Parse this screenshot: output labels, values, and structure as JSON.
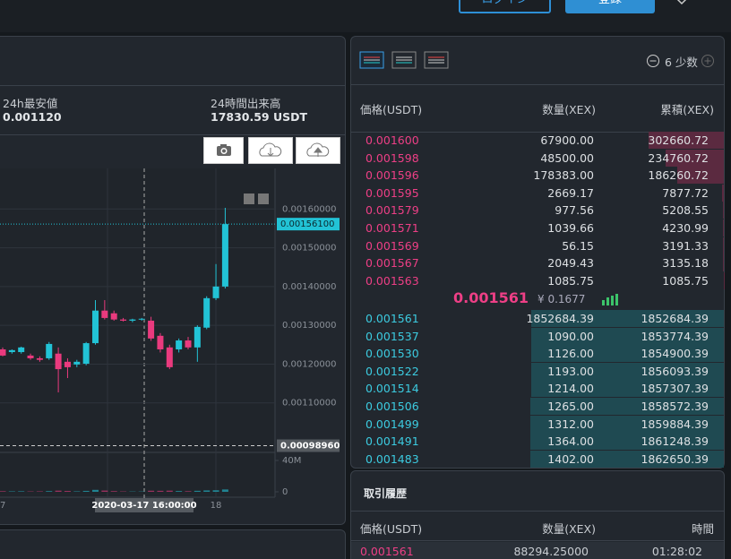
{
  "header": {
    "login": "ログイン",
    "register": "登録"
  },
  "stats": [
    {
      "label": "24h最安値",
      "value": "0.001120"
    },
    {
      "label": "24時間出来高",
      "value": "17830.59 USDT"
    }
  ],
  "chart": {
    "type": "candlestick",
    "up_color": "#22c3d6",
    "down_color": "#ea3a7e",
    "ylim": [
      0.00097,
      0.0017
    ],
    "yticks": [
      {
        "value": 0.0011,
        "label": "0.00110000"
      },
      {
        "value": 0.0012,
        "label": "0.00120000"
      },
      {
        "value": 0.0013,
        "label": "0.00130000"
      },
      {
        "value": 0.0014,
        "label": "0.00140000"
      },
      {
        "value": 0.0015,
        "label": "0.00150000"
      },
      {
        "value": 0.0016,
        "label": "0.00160000"
      }
    ],
    "last_price": {
      "value": 0.001561,
      "label": "0.00156100"
    },
    "low_line": {
      "value": 0.0009896,
      "label": "0.00098960"
    },
    "volume_ylim": [
      0,
      40000000
    ],
    "volume_ticks": [
      0,
      {
        "value": 40000000,
        "label": "40M"
      }
    ],
    "x_labels": [
      "7",
      "2020-03-17 16:00:00",
      "18"
    ],
    "candles": {
      "open": [
        0.001238,
        0.001231,
        0.001231,
        0.001222,
        0.001215,
        0.001215,
        0.001227,
        0.001206,
        0.001199,
        0.001201,
        0.001254,
        0.001338,
        0.001331,
        0.001315,
        0.001312,
        0.001315,
        0.001312,
        0.001273,
        0.001243,
        0.001238,
        0.001261,
        0.001243,
        0.001294,
        0.00137,
        0.0014
      ],
      "high": [
        0.001243,
        0.001238,
        0.001245,
        0.001227,
        0.00122,
        0.001257,
        0.001243,
        0.001215,
        0.001211,
        0.001257,
        0.001365,
        0.001365,
        0.001338,
        0.001319,
        0.001317,
        0.001319,
        0.001322,
        0.00128,
        0.00125,
        0.001266,
        0.00127,
        0.0013,
        0.001375,
        0.001458,
        0.001603
      ],
      "low": [
        0.00122,
        0.001227,
        0.001227,
        0.001211,
        0.001206,
        0.001211,
        0.001127,
        0.001164,
        0.001192,
        0.001197,
        0.00125,
        0.001315,
        0.001312,
        0.00131,
        0.001308,
        0.001312,
        0.00126,
        0.00123,
        0.001187,
        0.00123,
        0.001238,
        0.001206,
        0.00129,
        0.001365,
        0.001395
      ],
      "close": [
        0.001222,
        0.001236,
        0.001243,
        0.001215,
        0.001211,
        0.001252,
        0.001187,
        0.001192,
        0.001206,
        0.001254,
        0.001338,
        0.001319,
        0.001315,
        0.001312,
        0.001315,
        0.001317,
        0.001266,
        0.001238,
        0.001192,
        0.001261,
        0.001243,
        0.001296,
        0.00137,
        0.0014,
        0.001561
      ]
    },
    "volume": [
      800000,
      600000,
      700000,
      500000,
      600000,
      900000,
      1500000,
      1100000,
      600000,
      1200000,
      2500000,
      1600000,
      900000,
      500000,
      400000,
      400000,
      1400000,
      1300000,
      1500000,
      1000000,
      800000,
      1300000,
      1800000,
      2000000,
      3000000
    ]
  },
  "orderbook": {
    "precision": "6 少数",
    "columns": [
      "価格(USDT)",
      "数量(XEX)",
      "累積(XEX)"
    ],
    "asks": [
      [
        "0.001600",
        "67900.00",
        "302660.72"
      ],
      [
        "0.001598",
        "48500.00",
        "234760.72"
      ],
      [
        "0.001596",
        "178383.00",
        "186260.72"
      ],
      [
        "0.001595",
        "2669.17",
        "7877.72"
      ],
      [
        "0.001579",
        "977.56",
        "5208.55"
      ],
      [
        "0.001571",
        "1039.66",
        "4230.99"
      ],
      [
        "0.001569",
        "56.15",
        "3191.33"
      ],
      [
        "0.001567",
        "2049.43",
        "3135.18"
      ],
      [
        "0.001563",
        "1085.75",
        "1085.75"
      ]
    ],
    "mid": {
      "price": "0.001561",
      "fiat": "¥ 0.1677"
    },
    "bids": [
      [
        "0.001561",
        "1852684.39",
        "1852684.39"
      ],
      [
        "0.001537",
        "1090.00",
        "1853774.39"
      ],
      [
        "0.001530",
        "1126.00",
        "1854900.39"
      ],
      [
        "0.001522",
        "1193.00",
        "1856093.39"
      ],
      [
        "0.001514",
        "1214.00",
        "1857307.39"
      ],
      [
        "0.001506",
        "1265.00",
        "1858572.39"
      ],
      [
        "0.001499",
        "1312.00",
        "1859884.39"
      ],
      [
        "0.001491",
        "1364.00",
        "1861248.39"
      ],
      [
        "0.001483",
        "1402.00",
        "1862650.39"
      ]
    ]
  },
  "trades": {
    "title": "取引履歴",
    "columns": [
      "価格(USDT)",
      "数量(XEX)",
      "時間"
    ],
    "rows": [
      [
        "0.001561",
        "88294.25000",
        "01:28:02"
      ]
    ]
  }
}
